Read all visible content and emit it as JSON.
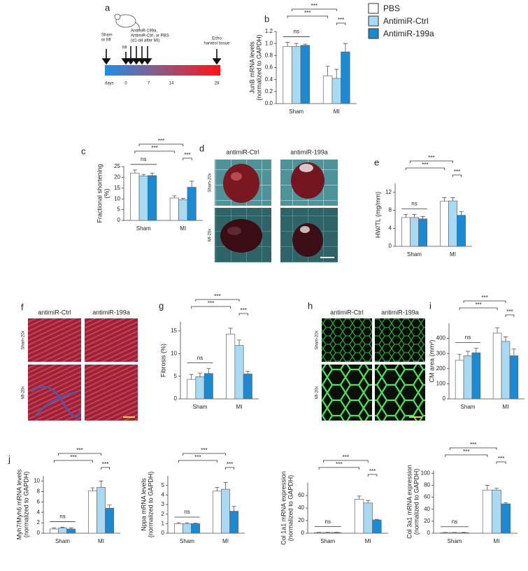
{
  "panel_labels": [
    "a",
    "b",
    "c",
    "d",
    "e",
    "f",
    "g",
    "h",
    "i",
    "j"
  ],
  "legend": [
    {
      "name": "PBS",
      "color": "#ffffff"
    },
    {
      "name": "AntimiR-Ctrl",
      "color": "#a9daf4"
    },
    {
      "name": "AntimiR-199a",
      "color": "#1a8ad4"
    }
  ],
  "timeline": {
    "start": [
      "Sham",
      "or MI"
    ],
    "mi": "MI",
    "treatment": [
      "AntimiR-199a,",
      "AntimiR-Ctrl, or PBS",
      "(d1-d4 after MI)"
    ],
    "end": [
      "Echo",
      "harvest tissue"
    ],
    "axis_label": "days",
    "ticks": [
      0,
      7,
      14,
      28
    ]
  },
  "images": {
    "d": {
      "columns": [
        "antimiR-Ctrl",
        "antimiR-199a"
      ],
      "rows": [
        "Sham-20x",
        "MI-20x"
      ]
    },
    "f": {
      "columns": [
        "antimiR-Ctrl",
        "antimiR-199a"
      ],
      "rows": [
        "Sham-20x",
        "MI-20x"
      ]
    },
    "h": {
      "columns": [
        "antimiR-Ctrl",
        "antimiR-199a"
      ],
      "rows": [
        "Sham-20x",
        "MI-20x"
      ]
    }
  },
  "chart_data": [
    {
      "type": "bar",
      "ylabel": [
        "JunB mRNA levels",
        "(normalized to GAPDH)"
      ],
      "categories": [
        "Sham",
        "MI"
      ],
      "series": [
        {
          "values": [
            0.95,
            0.46
          ],
          "errors": [
            0.07,
            0.16
          ]
        },
        {
          "values": [
            0.95,
            0.42
          ],
          "errors": [
            0.05,
            0.15
          ]
        },
        {
          "values": [
            0.97,
            0.86
          ],
          "errors": [
            0.02,
            0.14
          ]
        }
      ],
      "ylim": [
        0,
        1.2
      ],
      "yticks": [
        {
          "value": 0,
          "label": "0.0"
        },
        0.2,
        0.4,
        0.6,
        0.8,
        {
          "value": 1,
          "label": "1.0"
        },
        1.2
      ],
      "annotations": [
        "ns",
        "***",
        "***",
        "***"
      ]
    },
    {
      "type": "bar",
      "ylabel": [
        "Fractional shortening",
        "(%)"
      ],
      "categories": [
        "Sham",
        "MI"
      ],
      "series": [
        {
          "values": [
            22,
            10.4
          ],
          "errors": [
            1.4,
            1.0
          ]
        },
        {
          "values": [
            20.6,
            9.6
          ],
          "errors": [
            0.8,
            0.6
          ]
        },
        {
          "values": [
            20.8,
            15.4
          ],
          "errors": [
            1.2,
            2.8
          ]
        }
      ],
      "ylim": [
        0,
        25
      ],
      "yticks": [
        0,
        5,
        10,
        15,
        20,
        25
      ],
      "annotations": [
        "ns",
        "***",
        "***",
        "***"
      ]
    },
    {
      "type": "bar",
      "ylabel": [
        "HW/TL (mg/mm)"
      ],
      "categories": [
        "Sham",
        "MI"
      ],
      "series": [
        {
          "values": [
            6.4,
            10.0
          ],
          "errors": [
            0.7,
            0.8
          ]
        },
        {
          "values": [
            6.4,
            10.1
          ],
          "errors": [
            0.7,
            0.7
          ]
        },
        {
          "values": [
            6.1,
            6.9
          ],
          "errors": [
            0.5,
            0.8
          ]
        }
      ],
      "ylim": [
        0,
        14
      ],
      "yticks": [
        0,
        4,
        8,
        12
      ],
      "annotations": [
        "ns",
        "***",
        "***",
        "***"
      ]
    },
    {
      "type": "bar",
      "ylabel": [
        "Fibrosis (%)"
      ],
      "categories": [
        "Sham",
        "MI"
      ],
      "series": [
        {
          "values": [
            4.3,
            14.3
          ],
          "errors": [
            1.1,
            1.3
          ]
        },
        {
          "values": [
            4.9,
            11.8
          ],
          "errors": [
            0.8,
            1.2
          ]
        },
        {
          "values": [
            5.6,
            5.5
          ],
          "errors": [
            1.1,
            0.6
          ]
        }
      ],
      "ylim": [
        0,
        17
      ],
      "yticks": [
        0,
        5,
        10,
        15
      ],
      "annotations": [
        "ns",
        "***",
        "***",
        "***"
      ]
    },
    {
      "type": "bar",
      "ylabel": [
        "CM area (mm²)"
      ],
      "categories": [
        "Sham",
        "MI"
      ],
      "series": [
        {
          "values": [
            255,
            435
          ],
          "errors": [
            40,
            35
          ]
        },
        {
          "values": [
            285,
            380
          ],
          "errors": [
            30,
            30
          ]
        },
        {
          "values": [
            305,
            285
          ],
          "errors": [
            30,
            45
          ]
        }
      ],
      "ylim": [
        0,
        500
      ],
      "yticks": [
        0,
        100,
        200,
        300,
        400
      ],
      "annotations": [
        "ns",
        "***",
        "***",
        "***"
      ]
    },
    {
      "type": "bar",
      "ylabel": [
        "Myh7/Myh6 mRNA levels",
        "(normalized to GAPDH)"
      ],
      "categories": [
        "Sham",
        "MI"
      ],
      "series": [
        {
          "values": [
            0.8,
            8.1
          ],
          "errors": [
            0.2,
            0.6
          ]
        },
        {
          "values": [
            1.0,
            8.8
          ],
          "errors": [
            0.15,
            1.2
          ]
        },
        {
          "values": [
            0.8,
            4.8
          ],
          "errors": [
            0.2,
            0.6
          ]
        }
      ],
      "ylim": [
        0,
        11
      ],
      "yticks": [
        0,
        2,
        4,
        6,
        8,
        10
      ],
      "annotations": [
        "ns",
        "***",
        "***",
        "***"
      ]
    },
    {
      "type": "bar",
      "ylabel": [
        "Nppa mRNA levels",
        "(normalized to GAPDH)"
      ],
      "categories": [
        "Sham",
        "MI"
      ],
      "series": [
        {
          "values": [
            1.0,
            4.4
          ],
          "errors": [
            0.1,
            0.4
          ]
        },
        {
          "values": [
            1.0,
            4.6
          ],
          "errors": [
            0.1,
            0.7
          ]
        },
        {
          "values": [
            1.0,
            2.3
          ],
          "errors": [
            0.05,
            0.5
          ]
        }
      ],
      "ylim": [
        0,
        6
      ],
      "yticks": [
        0,
        1,
        2,
        3,
        4,
        5
      ],
      "annotations": [
        "ns",
        "***",
        "***",
        "***"
      ]
    },
    {
      "type": "bar",
      "ylabel": [
        "Col 1a1 mRNA expression",
        "(normalized to GAPDH)"
      ],
      "categories": [
        "Sham",
        "MI"
      ],
      "series": [
        {
          "values": [
            1,
            54
          ],
          "errors": [
            0.5,
            5
          ]
        },
        {
          "values": [
            1,
            48
          ],
          "errors": [
            0.5,
            4
          ]
        },
        {
          "values": [
            1,
            21
          ],
          "errors": [
            0.5,
            1
          ]
        }
      ],
      "ylim": [
        0,
        80
      ],
      "yticks": [
        0,
        20,
        40,
        60
      ],
      "annotations": [
        "ns",
        "***",
        "***",
        "***"
      ]
    },
    {
      "type": "bar",
      "ylabel": [
        "Col 3a1 mRNA expression",
        "(normalized to GAPDH)"
      ],
      "categories": [
        "Sham",
        "MI"
      ],
      "series": [
        {
          "values": [
            1,
            72
          ],
          "errors": [
            0.5,
            8
          ]
        },
        {
          "values": [
            1,
            72
          ],
          "errors": [
            0.5,
            3
          ]
        },
        {
          "values": [
            1,
            49
          ],
          "errors": [
            0.5,
            2
          ]
        }
      ],
      "ylim": [
        0,
        105
      ],
      "yticks": [
        0,
        20,
        40,
        60,
        80,
        100
      ],
      "annotations": [
        "ns",
        "***",
        "***",
        "***"
      ]
    }
  ]
}
